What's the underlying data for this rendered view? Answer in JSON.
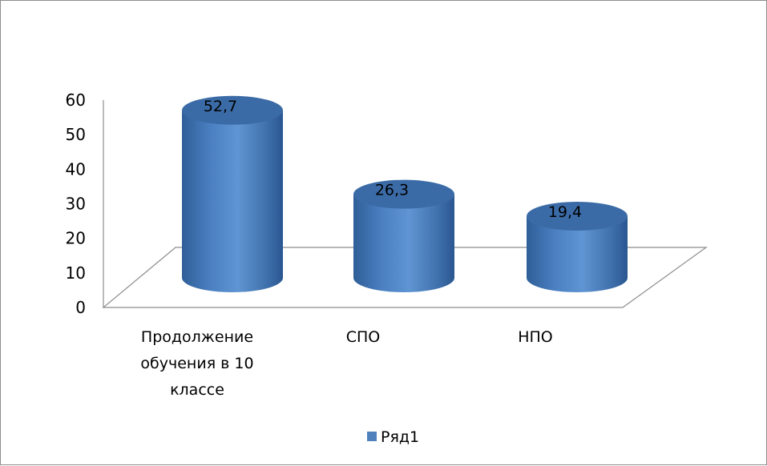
{
  "chart_data": {
    "type": "bar",
    "style": "3d-cylinder",
    "categories": [
      [
        "Продолжение",
        "обучения в 10",
        "классе"
      ],
      [
        "СПО"
      ],
      [
        "НПО"
      ]
    ],
    "series": [
      {
        "name": "Ряд1",
        "values": [
          52.7,
          26.3,
          19.4
        ],
        "color": "#4f81bd"
      }
    ],
    "data_labels": [
      "52,7",
      "26,3",
      "19,4"
    ],
    "yticks": [
      "0",
      "10",
      "20",
      "30",
      "40",
      "50",
      "60"
    ],
    "ylim": [
      0,
      60
    ],
    "grid": false,
    "legend_position": "bottom"
  }
}
